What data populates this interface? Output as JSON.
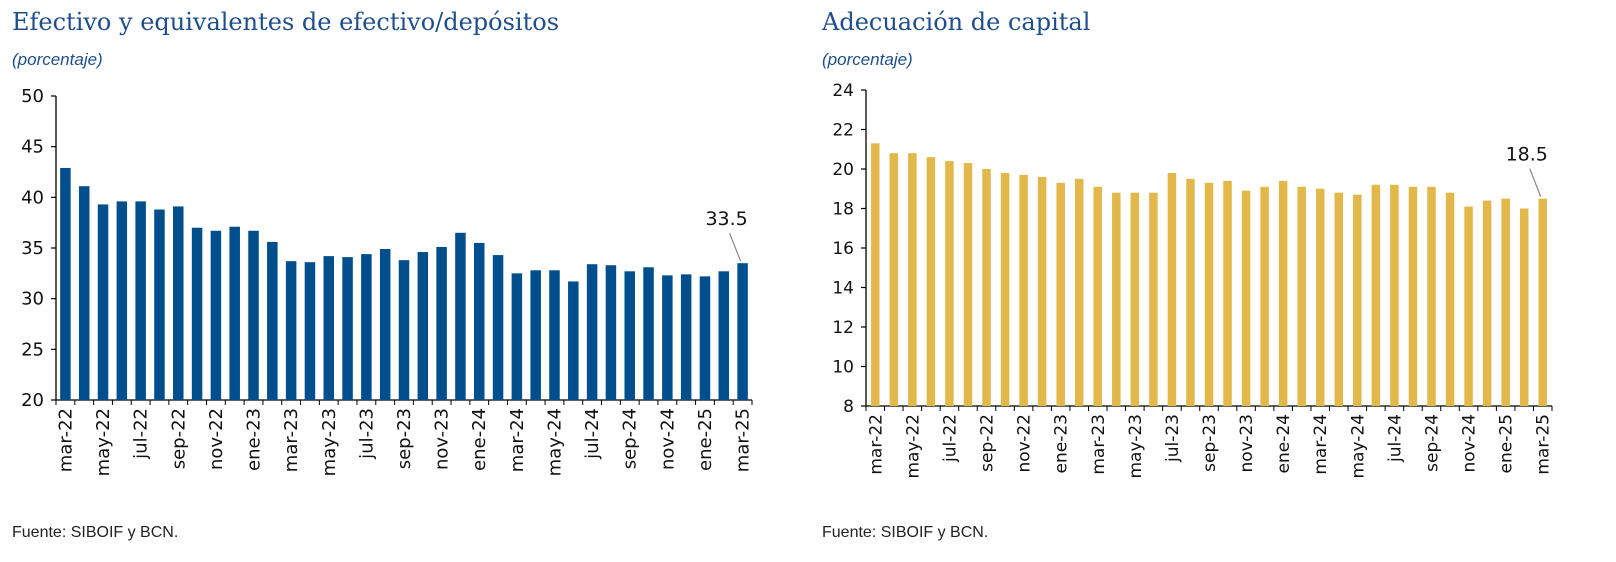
{
  "source_text": "Fuente: SIBOIF y BCN.",
  "chart_data": [
    {
      "type": "bar",
      "title": "Efectivo y equivalentes de efectivo/depósitos",
      "subtitle": "(porcentaje)",
      "color": "#004F8C",
      "ylim": [
        20,
        50
      ],
      "yticks": [
        20,
        25,
        30,
        35,
        40,
        45,
        50
      ],
      "grid": false,
      "xtick_labels": [
        "mar-22",
        "may-22",
        "jul-22",
        "sep-22",
        "nov-22",
        "ene-23",
        "mar-23",
        "may-23",
        "jul-23",
        "sep-23",
        "nov-23",
        "ene-24",
        "mar-24",
        "may-24",
        "jul-24",
        "sep-24",
        "nov-24",
        "ene-25",
        "mar-25"
      ],
      "categories": [
        "mar-22",
        "abr-22",
        "may-22",
        "jun-22",
        "jul-22",
        "ago-22",
        "sep-22",
        "oct-22",
        "nov-22",
        "dic-22",
        "ene-23",
        "feb-23",
        "mar-23",
        "abr-23",
        "may-23",
        "jun-23",
        "jul-23",
        "ago-23",
        "sep-23",
        "oct-23",
        "nov-23",
        "dic-23",
        "ene-24",
        "feb-24",
        "mar-24",
        "abr-24",
        "may-24",
        "jun-24",
        "jul-24",
        "ago-24",
        "sep-24",
        "oct-24",
        "nov-24",
        "dic-24",
        "ene-25",
        "feb-25",
        "mar-25"
      ],
      "values": [
        42.9,
        41.1,
        39.3,
        39.6,
        39.6,
        38.8,
        39.1,
        37.0,
        36.7,
        37.1,
        36.7,
        35.6,
        33.7,
        33.6,
        34.2,
        34.1,
        34.4,
        34.9,
        33.8,
        34.6,
        35.1,
        36.5,
        35.5,
        34.3,
        32.5,
        32.8,
        32.8,
        31.7,
        33.4,
        33.3,
        32.7,
        33.1,
        32.3,
        32.4,
        32.2,
        32.7,
        33.5
      ],
      "annotation": {
        "text": "33.5",
        "index": 36
      }
    },
    {
      "type": "bar",
      "title": "Adecuación de capital",
      "subtitle": "(porcentaje)",
      "color": "#E3B84B",
      "ylim": [
        8,
        24
      ],
      "yticks": [
        8,
        10,
        12,
        14,
        16,
        18,
        20,
        22,
        24
      ],
      "grid": false,
      "xtick_labels": [
        "mar-22",
        "may-22",
        "jul-22",
        "sep-22",
        "nov-22",
        "ene-23",
        "mar-23",
        "may-23",
        "jul-23",
        "sep-23",
        "nov-23",
        "ene-24",
        "mar-24",
        "may-24",
        "jul-24",
        "sep-24",
        "nov-24",
        "ene-25",
        "mar-25"
      ],
      "categories": [
        "mar-22",
        "abr-22",
        "may-22",
        "jun-22",
        "jul-22",
        "ago-22",
        "sep-22",
        "oct-22",
        "nov-22",
        "dic-22",
        "ene-23",
        "feb-23",
        "mar-23",
        "abr-23",
        "may-23",
        "jun-23",
        "jul-23",
        "ago-23",
        "sep-23",
        "oct-23",
        "nov-23",
        "dic-23",
        "ene-24",
        "feb-24",
        "mar-24",
        "abr-24",
        "may-24",
        "jun-24",
        "jul-24",
        "ago-24",
        "sep-24",
        "oct-24",
        "nov-24",
        "dic-24",
        "ene-25",
        "feb-25",
        "mar-25"
      ],
      "values": [
        21.3,
        20.8,
        20.8,
        20.6,
        20.4,
        20.3,
        20.0,
        19.8,
        19.7,
        19.6,
        19.3,
        19.5,
        19.1,
        18.8,
        18.8,
        18.8,
        19.8,
        19.5,
        19.3,
        19.4,
        18.9,
        19.1,
        19.4,
        19.1,
        19.0,
        18.8,
        18.7,
        19.2,
        19.2,
        19.1,
        19.1,
        18.8,
        18.1,
        18.4,
        18.5,
        18.0,
        18.5
      ],
      "annotation": {
        "text": "18.5",
        "index": 36
      }
    }
  ]
}
